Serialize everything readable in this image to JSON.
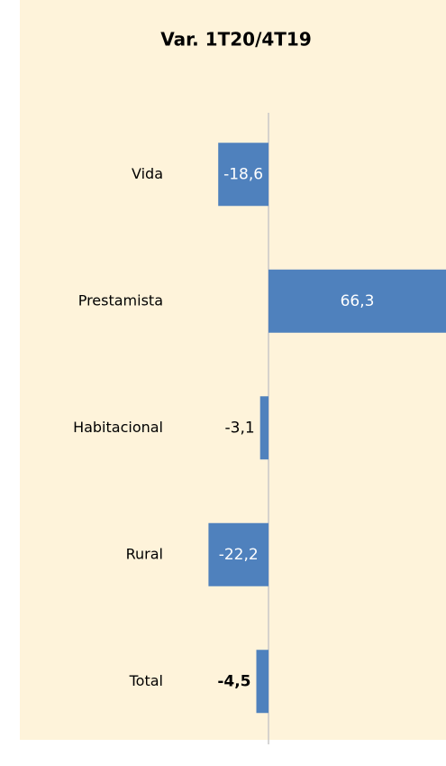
{
  "chart_data": {
    "type": "bar",
    "orientation": "horizontal",
    "title": "Var. 1T20/4T19",
    "categories": [
      "Vida",
      "Prestamista",
      "Habitacional",
      "Rural",
      "Total"
    ],
    "values": [
      -18.6,
      66.3,
      -3.1,
      -22.2,
      -4.5
    ],
    "value_labels": [
      "-18,6",
      "66,3",
      "-3,1",
      "-22,2",
      "-4,5"
    ],
    "color": "#4f81bd"
  }
}
